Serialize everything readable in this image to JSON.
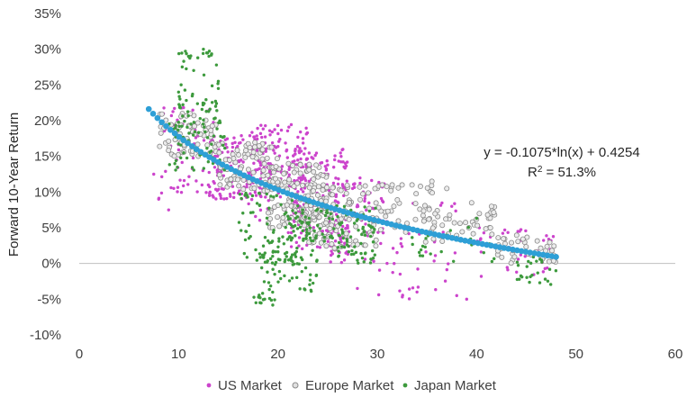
{
  "chart_data": {
    "type": "scatter",
    "title": "",
    "xlabel": "",
    "ylabel": "Forward 10-Year Return",
    "xlim": [
      0,
      60
    ],
    "ylim": [
      -0.1,
      0.35
    ],
    "x_ticks": [
      0,
      10,
      20,
      30,
      40,
      50,
      60
    ],
    "y_ticks": [
      -0.1,
      -0.05,
      0.0,
      0.05,
      0.1,
      0.15,
      0.2,
      0.25,
      0.3,
      0.35
    ],
    "x_tick_labels": [
      "0",
      "10",
      "20",
      "30",
      "40",
      "50",
      "60"
    ],
    "y_tick_labels": [
      "-10%",
      "-5%",
      "0%",
      "5%",
      "10%",
      "15%",
      "20%",
      "25%",
      "30%",
      "35%"
    ],
    "grid": false,
    "legend_position": "bottom",
    "series": [
      {
        "name": "US Market",
        "legend_label": "US Market",
        "color": "#cc44cc",
        "marker": "filled-dot",
        "clusters": [
          {
            "x": [
              8,
              14
            ],
            "y": [
              0.08,
              0.22
            ],
            "n": 70
          },
          {
            "x": [
              13,
              19
            ],
            "y": [
              0.09,
              0.18
            ],
            "n": 140
          },
          {
            "x": [
              17,
              23
            ],
            "y": [
              0.06,
              0.195
            ],
            "n": 170
          },
          {
            "x": [
              21,
              27
            ],
            "y": [
              0.02,
              0.16
            ],
            "n": 150
          },
          {
            "x": [
              25,
              31
            ],
            "y": [
              0.0,
              0.12
            ],
            "n": 90
          },
          {
            "x": [
              30,
              38
            ],
            "y": [
              -0.05,
              0.09
            ],
            "n": 40
          },
          {
            "x": [
              40,
              48
            ],
            "y": [
              -0.02,
              0.05
            ],
            "n": 40
          }
        ],
        "points": [
          {
            "x": 7.5,
            "y": 0.125
          },
          {
            "x": 8.0,
            "y": 0.09
          },
          {
            "x": 9.0,
            "y": 0.075
          },
          {
            "x": 28.0,
            "y": -0.035
          },
          {
            "x": 34.0,
            "y": -0.04
          },
          {
            "x": 38.0,
            "y": -0.045
          },
          {
            "x": 37.5,
            "y": 0.08
          },
          {
            "x": 39.0,
            "y": -0.05
          }
        ]
      },
      {
        "name": "Europe Market",
        "legend_label": "Europe Market",
        "color": "#a6a6a6",
        "marker": "hollow-circle",
        "clusters": [
          {
            "x": [
              8,
              14
            ],
            "y": [
              0.15,
              0.21
            ],
            "n": 70
          },
          {
            "x": [
              14,
              20
            ],
            "y": [
              0.1,
              0.17
            ],
            "n": 80
          },
          {
            "x": [
              19,
              25
            ],
            "y": [
              0.05,
              0.14
            ],
            "n": 130
          },
          {
            "x": [
              23,
              30
            ],
            "y": [
              0.02,
              0.11
            ],
            "n": 110
          },
          {
            "x": [
              29,
              36
            ],
            "y": [
              0.04,
              0.11
            ],
            "n": 40
          },
          {
            "x": [
              34,
              42
            ],
            "y": [
              0.03,
              0.08
            ],
            "n": 40
          },
          {
            "x": [
              42,
              48
            ],
            "y": [
              0.0,
              0.04
            ],
            "n": 40
          }
        ],
        "points": [
          {
            "x": 30.5,
            "y": 0.11
          },
          {
            "x": 31.5,
            "y": 0.11
          },
          {
            "x": 32.5,
            "y": 0.11
          },
          {
            "x": 33.5,
            "y": 0.11
          },
          {
            "x": 35.5,
            "y": 0.115
          },
          {
            "x": 37.0,
            "y": 0.105
          },
          {
            "x": 39.5,
            "y": 0.085
          },
          {
            "x": 41.5,
            "y": 0.08
          }
        ]
      },
      {
        "name": "Japan Market",
        "legend_label": "Japan Market",
        "color": "#3d9a3d",
        "marker": "filled-dot",
        "clusters": [
          {
            "x": [
              10,
              14
            ],
            "y": [
              0.2,
              0.3
            ],
            "n": 55
          },
          {
            "x": [
              9,
              15
            ],
            "y": [
              0.13,
              0.2
            ],
            "n": 60
          },
          {
            "x": [
              16,
              22
            ],
            "y": [
              0.0,
              0.1
            ],
            "n": 70
          },
          {
            "x": [
              17,
              20
            ],
            "y": [
              -0.06,
              -0.04
            ],
            "n": 15
          },
          {
            "x": [
              18,
              24
            ],
            "y": [
              -0.04,
              0.02
            ],
            "n": 60
          },
          {
            "x": [
              21,
              27
            ],
            "y": [
              0.03,
              0.09
            ],
            "n": 80
          },
          {
            "x": [
              26,
              30
            ],
            "y": [
              0.0,
              0.08
            ],
            "n": 70
          },
          {
            "x": [
              33,
              42
            ],
            "y": [
              0.0,
              0.07
            ],
            "n": 25
          },
          {
            "x": [
              44,
              48
            ],
            "y": [
              -0.03,
              0.01
            ],
            "n": 25
          }
        ],
        "points": [
          {
            "x": 12.5,
            "y": 0.3
          },
          {
            "x": 11.0,
            "y": 0.29
          },
          {
            "x": 14.0,
            "y": 0.255
          },
          {
            "x": 14.0,
            "y": 0.245
          },
          {
            "x": 10.0,
            "y": 0.24
          }
        ]
      }
    ],
    "trendline": {
      "type": "logarithmic",
      "coef_a": -0.1075,
      "coef_b": 0.4254,
      "x_range": [
        7,
        48
      ],
      "color": "#2e9fd6",
      "marker_count": 95
    },
    "annotations": {
      "equation": "y = -0.1075*ln(x) + 0.4254",
      "r2_prefix": "R",
      "r2_sup": "2",
      "r2_value": " = 51.3%"
    }
  }
}
